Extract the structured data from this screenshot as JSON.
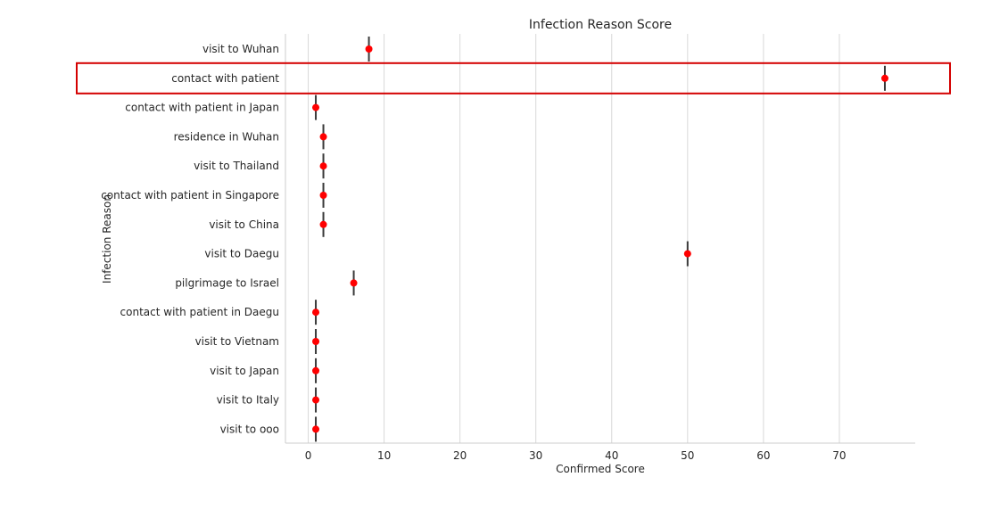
{
  "chart_data": {
    "type": "pointplot",
    "orientation": "horizontal",
    "title": "Infection Reason Score",
    "xlabel": "Confirmed Score",
    "ylabel": "Infection Reason",
    "xlim": [
      -3,
      80
    ],
    "xticks": [
      0,
      10,
      20,
      30,
      40,
      50,
      60,
      70
    ],
    "grid": "vertical",
    "point_color": "#ff0000",
    "errorbar_color": "#3a3a3a",
    "highlight_color": "#d40000",
    "highlight_category": "contact with patient",
    "categories": [
      "visit to Wuhan",
      "contact with patient",
      "contact with patient in Japan",
      "residence in Wuhan",
      "visit to Thailand",
      "contact with patient in Singapore",
      "visit to China",
      "visit to Daegu",
      "pilgrimage to Israel",
      "contact with patient in Daegu",
      "visit to Vietnam",
      "visit to Japan",
      "visit to Italy",
      "visit to ooo"
    ],
    "values": [
      8,
      76,
      1,
      2,
      2,
      2,
      2,
      50,
      6,
      1,
      1,
      1,
      1,
      1
    ]
  }
}
